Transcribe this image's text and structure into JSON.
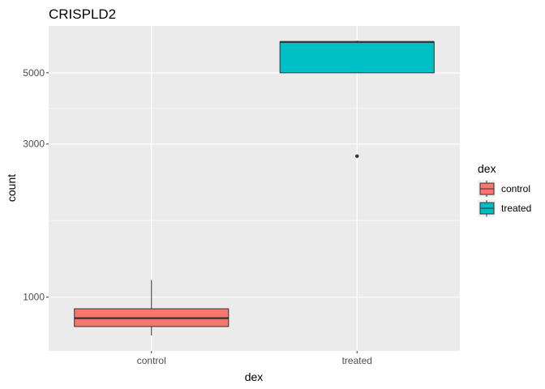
{
  "chart_data": {
    "type": "boxplot",
    "title": "CRISPLD2",
    "xlabel": "dex",
    "ylabel": "count",
    "y_scale": "log10",
    "ylim": [
      680,
      7000
    ],
    "yticks": [
      1000,
      3000,
      5000
    ],
    "ytick_labels": [
      "1000",
      "3000",
      "5000"
    ],
    "grid": true,
    "legend": {
      "title": "dex",
      "position": "right",
      "entries": [
        "control",
        "treated"
      ]
    },
    "categories": [
      "control",
      "treated"
    ],
    "colors": {
      "control": "#F8766D",
      "treated": "#00BFC4"
    },
    "boxes": [
      {
        "category": "control",
        "whisker_low": 760,
        "q1": 810,
        "median": 860,
        "q3": 920,
        "whisker_high": 1130,
        "outliers": []
      },
      {
        "category": "treated",
        "whisker_low": 5000,
        "q1": 5000,
        "median": 6240,
        "q3": 6240,
        "whisker_high": 6300,
        "outliers": [
          2750
        ]
      }
    ]
  }
}
